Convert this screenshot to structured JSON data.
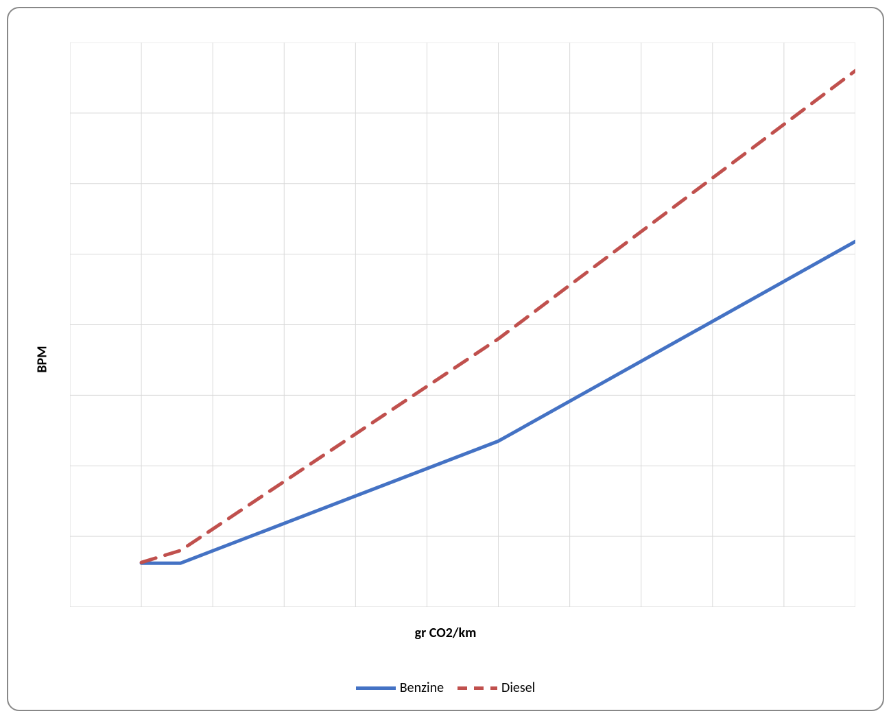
{
  "chart": {
    "type": "line",
    "ylabel": "BPM",
    "xlabel": "gr CO2/km",
    "label_fontsize": 20,
    "label_fontweight": "bold",
    "background_color": "#ffffff",
    "grid_color": "#d9d9d9",
    "axis_color": "#d9d9d9",
    "border_color": "#888888",
    "border_radius": 18,
    "xlim": [
      0,
      11
    ],
    "ylim": [
      0,
      8
    ],
    "x_grid_count": 11,
    "y_grid_count": 8,
    "series": {
      "benzine": {
        "label": "Benzine",
        "color": "#4472c4",
        "stroke_width": 5,
        "dash": "none",
        "points": [
          {
            "x": 1.0,
            "y": 0.62
          },
          {
            "x": 1.55,
            "y": 0.62
          },
          {
            "x": 6.0,
            "y": 2.35
          },
          {
            "x": 11.0,
            "y": 5.18
          }
        ]
      },
      "diesel": {
        "label": "Diesel",
        "color": "#c0504d",
        "stroke_width": 5,
        "dash": "22,14",
        "points": [
          {
            "x": 1.0,
            "y": 0.63
          },
          {
            "x": 1.55,
            "y": 0.8
          },
          {
            "x": 6.0,
            "y": 3.8
          },
          {
            "x": 11.0,
            "y": 7.6
          }
        ]
      }
    },
    "legend": {
      "position": "bottom",
      "fontsize": 20,
      "items": [
        "benzine",
        "diesel"
      ]
    }
  }
}
